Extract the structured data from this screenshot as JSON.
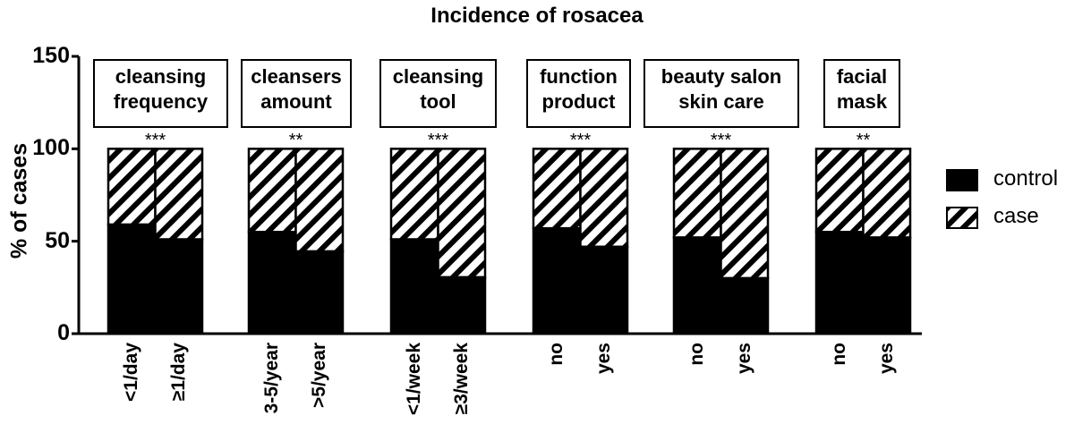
{
  "chart_data": {
    "type": "bar",
    "stacked": true,
    "title": "Incidence of rosacea",
    "xlabel": "",
    "ylabel": "% of cases",
    "ylim": [
      0,
      150
    ],
    "yticks": [
      0,
      50,
      100,
      150
    ],
    "grid": false,
    "legend_position": "right",
    "legend": [
      {
        "name": "control",
        "fill": "solid-black"
      },
      {
        "name": "case",
        "fill": "diagonal-hatch"
      }
    ],
    "groups": [
      {
        "label": "cleansing frequency",
        "label_lines": [
          "cleansing",
          "frequency"
        ],
        "significance": "***",
        "categories": [
          "<1/day",
          "≥1/day"
        ]
      },
      {
        "label": "cleansers amount",
        "label_lines": [
          "cleansers",
          "amount"
        ],
        "significance": "**",
        "categories": [
          "3-5/year",
          ">5/year"
        ]
      },
      {
        "label": "cleansing tool",
        "label_lines": [
          "cleansing",
          "tool"
        ],
        "significance": "***",
        "categories": [
          "<1/week",
          "≥3/week"
        ]
      },
      {
        "label": "function product",
        "label_lines": [
          "function",
          "product"
        ],
        "significance": "***",
        "categories": [
          "no",
          "yes"
        ]
      },
      {
        "label": "beauty salon skin care",
        "label_lines": [
          "beauty salon",
          "skin care"
        ],
        "significance": "***",
        "categories": [
          "no",
          "yes"
        ]
      },
      {
        "label": "facial mask",
        "label_lines": [
          "facial",
          "mask"
        ],
        "significance": "**",
        "categories": [
          "no",
          "yes"
        ]
      }
    ],
    "categories": [
      "<1/day",
      "≥1/day",
      "3-5/year",
      ">5/year",
      "<1/week",
      "≥3/week",
      "no",
      "yes",
      "no",
      "yes",
      "no",
      "yes"
    ],
    "series": [
      {
        "name": "control",
        "values": [
          59,
          51,
          55,
          44.5,
          51,
          30.5,
          57,
          47,
          52,
          30,
          55,
          52
        ]
      },
      {
        "name": "case",
        "values": [
          41,
          49,
          45,
          55.5,
          49,
          69.5,
          43,
          53,
          48,
          70,
          45,
          48
        ]
      }
    ]
  },
  "colors": {
    "control": "#000000",
    "case_stripe": "#000000",
    "background": "#ffffff"
  }
}
